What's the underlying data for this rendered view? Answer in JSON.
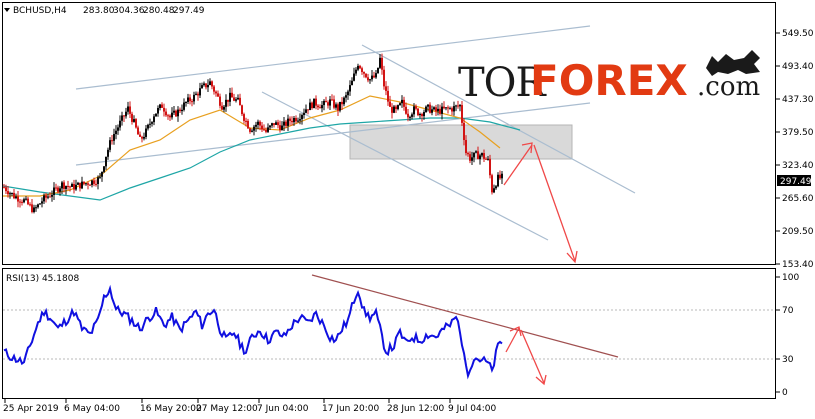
{
  "header": {
    "symbol": "BCHUSD,H4",
    "open": "283.80",
    "high": "304.36",
    "low": "280.48",
    "close": "297.49"
  },
  "logo": {
    "part1": "TOR",
    "part2": "FOREX",
    "part3": ".com"
  },
  "price_axis": {
    "ticks": [
      "549.50",
      "493.40",
      "437.30",
      "379.50",
      "323.40",
      "265.60",
      "209.50",
      "153.40"
    ],
    "current_price": "297.49"
  },
  "rsi_panel": {
    "label": "RSI(13) 45.1808",
    "ticks": [
      "100",
      "70",
      "30",
      "0"
    ]
  },
  "time_axis": {
    "ticks": [
      "25 Apr 2019",
      "6 May 04:00",
      "16 May 20:00",
      "27 May 12:00",
      "7 Jun 04:00",
      "17 Jun 20:00",
      "28 Jun 12:00",
      "9 Jul 04:00"
    ]
  },
  "colors": {
    "bull_candle": "#0a0a0a",
    "bear_candle": "#d21414",
    "ma_fast": "#e8a020",
    "ma_slow": "#20a8a8",
    "channel": "#a9bccf",
    "rsi_line": "#1010e0",
    "rsi_trend": "#a05050",
    "arrow": "#f04040",
    "zone": "#c8c8c8"
  },
  "chart_data": {
    "type": "candlestick",
    "title": "BCHUSD,H4",
    "y_range": [
      153.4,
      580
    ],
    "close_path": [
      [
        0,
        285
      ],
      [
        10,
        270
      ],
      [
        20,
        262
      ],
      [
        30,
        245
      ],
      [
        38,
        262
      ],
      [
        48,
        275
      ],
      [
        58,
        290
      ],
      [
        68,
        285
      ],
      [
        78,
        290
      ],
      [
        88,
        295
      ],
      [
        96,
        300
      ],
      [
        102,
        340
      ],
      [
        108,
        370
      ],
      [
        116,
        395
      ],
      [
        124,
        420
      ],
      [
        130,
        395
      ],
      [
        136,
        365
      ],
      [
        142,
        380
      ],
      [
        150,
        410
      ],
      [
        158,
        425
      ],
      [
        166,
        405
      ],
      [
        174,
        415
      ],
      [
        182,
        430
      ],
      [
        190,
        440
      ],
      [
        198,
        455
      ],
      [
        206,
        465
      ],
      [
        212,
        445
      ],
      [
        218,
        425
      ],
      [
        226,
        440
      ],
      [
        234,
        432
      ],
      [
        240,
        405
      ],
      [
        246,
        385
      ],
      [
        254,
        395
      ],
      [
        262,
        380
      ],
      [
        270,
        395
      ],
      [
        278,
        388
      ],
      [
        286,
        400
      ],
      [
        294,
        405
      ],
      [
        302,
        420
      ],
      [
        310,
        430
      ],
      [
        318,
        425
      ],
      [
        326,
        432
      ],
      [
        334,
        420
      ],
      [
        342,
        440
      ],
      [
        348,
        465
      ],
      [
        354,
        498
      ],
      [
        360,
        482
      ],
      [
        366,
        470
      ],
      [
        372,
        475
      ],
      [
        376,
        505
      ],
      [
        380,
        460
      ],
      [
        386,
        420
      ],
      [
        392,
        415
      ],
      [
        398,
        430
      ],
      [
        404,
        410
      ],
      [
        410,
        418
      ],
      [
        416,
        412
      ],
      [
        424,
        420
      ],
      [
        432,
        415
      ],
      [
        440,
        418
      ],
      [
        448,
        420
      ],
      [
        456,
        425
      ],
      [
        462,
        345
      ],
      [
        466,
        335
      ],
      [
        472,
        340
      ],
      [
        478,
        340
      ],
      [
        484,
        330
      ],
      [
        488,
        280
      ],
      [
        494,
        300
      ],
      [
        500,
        302
      ]
    ],
    "rsi_path": [
      [
        0,
        35
      ],
      [
        8,
        30
      ],
      [
        14,
        28
      ],
      [
        20,
        25
      ],
      [
        28,
        45
      ],
      [
        34,
        60
      ],
      [
        40,
        70
      ],
      [
        46,
        65
      ],
      [
        54,
        55
      ],
      [
        62,
        62
      ],
      [
        70,
        70
      ],
      [
        78,
        55
      ],
      [
        86,
        50
      ],
      [
        94,
        62
      ],
      [
        100,
        82
      ],
      [
        106,
        90
      ],
      [
        112,
        72
      ],
      [
        120,
        68
      ],
      [
        128,
        62
      ],
      [
        136,
        55
      ],
      [
        144,
        64
      ],
      [
        152,
        70
      ],
      [
        160,
        58
      ],
      [
        168,
        65
      ],
      [
        176,
        54
      ],
      [
        184,
        62
      ],
      [
        192,
        70
      ],
      [
        198,
        58
      ],
      [
        204,
        68
      ],
      [
        210,
        72
      ],
      [
        216,
        55
      ],
      [
        222,
        45
      ],
      [
        230,
        52
      ],
      [
        236,
        42
      ],
      [
        242,
        35
      ],
      [
        248,
        48
      ],
      [
        256,
        54
      ],
      [
        264,
        45
      ],
      [
        272,
        52
      ],
      [
        280,
        48
      ],
      [
        288,
        58
      ],
      [
        296,
        65
      ],
      [
        304,
        60
      ],
      [
        312,
        68
      ],
      [
        320,
        58
      ],
      [
        326,
        48
      ],
      [
        332,
        45
      ],
      [
        338,
        55
      ],
      [
        344,
        62
      ],
      [
        350,
        80
      ],
      [
        354,
        90
      ],
      [
        360,
        70
      ],
      [
        366,
        65
      ],
      [
        372,
        68
      ],
      [
        378,
        48
      ],
      [
        382,
        35
      ],
      [
        390,
        40
      ],
      [
        396,
        52
      ],
      [
        402,
        42
      ],
      [
        408,
        48
      ],
      [
        416,
        45
      ],
      [
        424,
        50
      ],
      [
        432,
        48
      ],
      [
        440,
        55
      ],
      [
        446,
        58
      ],
      [
        452,
        65
      ],
      [
        456,
        55
      ],
      [
        460,
        30
      ],
      [
        464,
        18
      ],
      [
        470,
        30
      ],
      [
        478,
        28
      ],
      [
        484,
        25
      ],
      [
        488,
        18
      ],
      [
        494,
        40
      ],
      [
        500,
        45
      ]
    ]
  }
}
